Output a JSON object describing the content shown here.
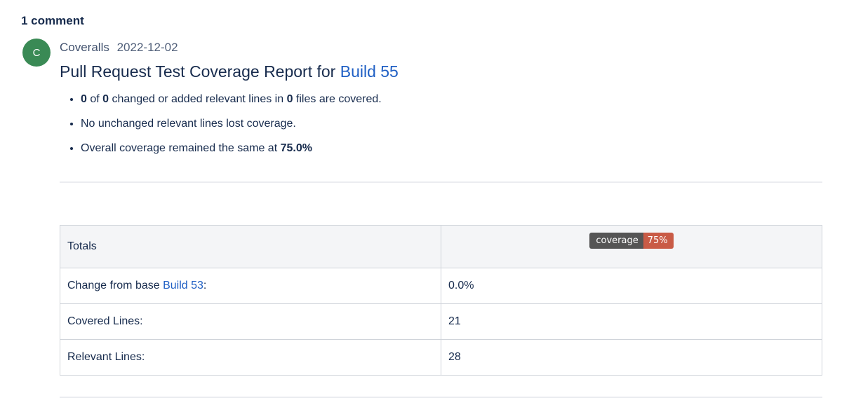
{
  "comment_count": "1 comment",
  "comment": {
    "avatar_letter": "C",
    "author": "Coveralls",
    "date": "2022-12-02",
    "title_prefix": "Pull Request Test Coverage Report for ",
    "title_link": "Build 55",
    "bullets": [
      {
        "n1": "0",
        "t1": " of ",
        "n2": "0",
        "t2": " changed or added relevant lines in ",
        "n3": "0",
        "t3": " files are covered."
      },
      {
        "text": "No unchanged relevant lines lost coverage."
      },
      {
        "prefix": "Overall coverage remained the same at ",
        "value": "75.0%"
      }
    ],
    "table": {
      "header_label": "Totals",
      "badge_label": "coverage",
      "badge_value": "75%",
      "rows": [
        {
          "label_prefix": "Change from base ",
          "label_link": "Build 53",
          "label_suffix": ":",
          "value": "0.0%"
        },
        {
          "label": "Covered Lines:",
          "value": "21"
        },
        {
          "label": "Relevant Lines:",
          "value": "28"
        }
      ]
    }
  },
  "colors": {
    "avatar_bg": "#3a8a55",
    "link": "#1f5fc4",
    "badge_label_bg": "#555555",
    "badge_value_bg": "#c95b46"
  }
}
